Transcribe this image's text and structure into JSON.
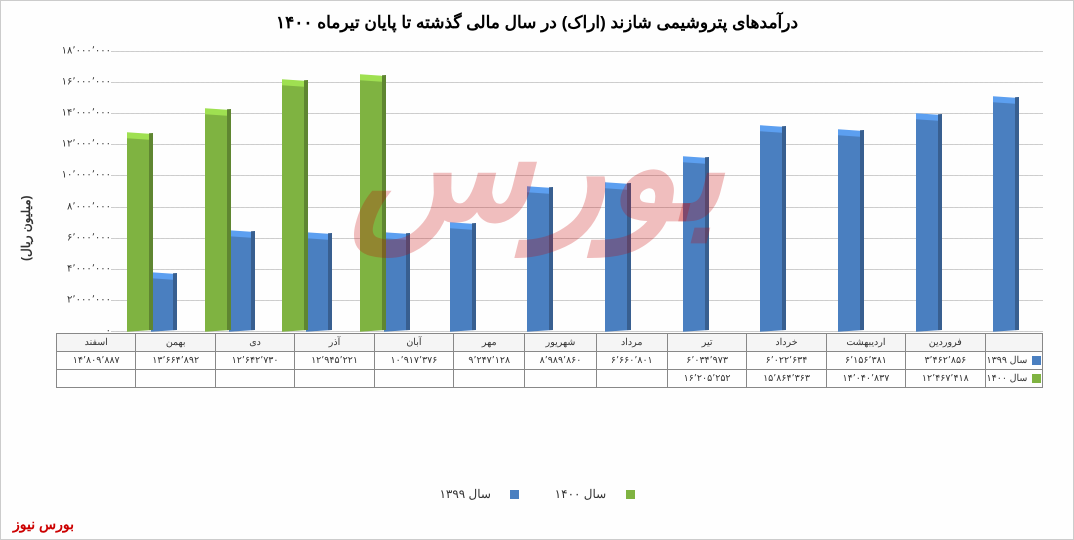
{
  "title": "درآمدهای پتروشیمی شازند (اراک) در سال مالی گذشته تا پایان تیرماه ۱۴۰۰",
  "y_axis_title": "(میلیون ریال)",
  "y_max": 18000000,
  "y_min": 0,
  "y_tick_step": 2000000,
  "y_ticks": [
    "۰",
    "۲٬۰۰۰٬۰۰۰",
    "۴٬۰۰۰٬۰۰۰",
    "۶٬۰۰۰٬۰۰۰",
    "۸٬۰۰۰٬۰۰۰",
    "۱۰٬۰۰۰٬۰۰۰",
    "۱۲٬۰۰۰٬۰۰۰",
    "۱۴٬۰۰۰٬۰۰۰",
    "۱۶٬۰۰۰٬۰۰۰",
    "۱۸٬۰۰۰٬۰۰۰"
  ],
  "months": [
    "فروردین",
    "اردیبهشت",
    "خرداد",
    "تیر",
    "مرداد",
    "شهریور",
    "مهر",
    "آبان",
    "آذر",
    "دی",
    "بهمن",
    "اسفند"
  ],
  "series": {
    "s1399": {
      "label": "سال ۱۳۹۹",
      "color": "#4a7fc0",
      "values": [
        3462856,
        6156381,
        6022634,
        6034973,
        6660801,
        8989860,
        9247128,
        10917376,
        12945221,
        12642730,
        13664892,
        14809887
      ],
      "values_fa": [
        "۳٬۴۶۲٬۸۵۶",
        "۶٬۱۵۶٬۳۸۱",
        "۶٬۰۲۲٬۶۳۴",
        "۶٬۰۳۴٬۹۷۳",
        "۶٬۶۶۰٬۸۰۱",
        "۸٬۹۸۹٬۸۶۰",
        "۹٬۲۴۷٬۱۲۸",
        "۱۰٬۹۱۷٬۳۷۶",
        "۱۲٬۹۴۵٬۲۲۱",
        "۱۲٬۶۴۲٬۷۳۰",
        "۱۳٬۶۶۴٬۸۹۲",
        "۱۴٬۸۰۹٬۸۸۷"
      ]
    },
    "s1400": {
      "label": "سال ۱۴۰۰",
      "color": "#7fb341",
      "values": [
        12467418,
        14040837,
        15864363,
        16205252,
        null,
        null,
        null,
        null,
        null,
        null,
        null,
        null
      ],
      "values_fa": [
        "۱۲٬۴۶۷٬۴۱۸",
        "۱۴٬۰۴۰٬۸۳۷",
        "۱۵٬۸۶۴٬۳۶۳",
        "۱۶٬۲۰۵٬۲۵۲",
        "",
        "",
        "",
        "",
        "",
        "",
        "",
        ""
      ]
    }
  },
  "legend_bottom": {
    "s1399": "سال ۱۳۹۹",
    "s1400": "سال ۱۴۰۰"
  },
  "brand": "بورس نیوز",
  "watermark": "بورس",
  "chart_type": "3d-bar",
  "background": "#fefefe",
  "grid_color": "#d0d0d0",
  "title_fontsize": 17,
  "label_fontsize": 10
}
